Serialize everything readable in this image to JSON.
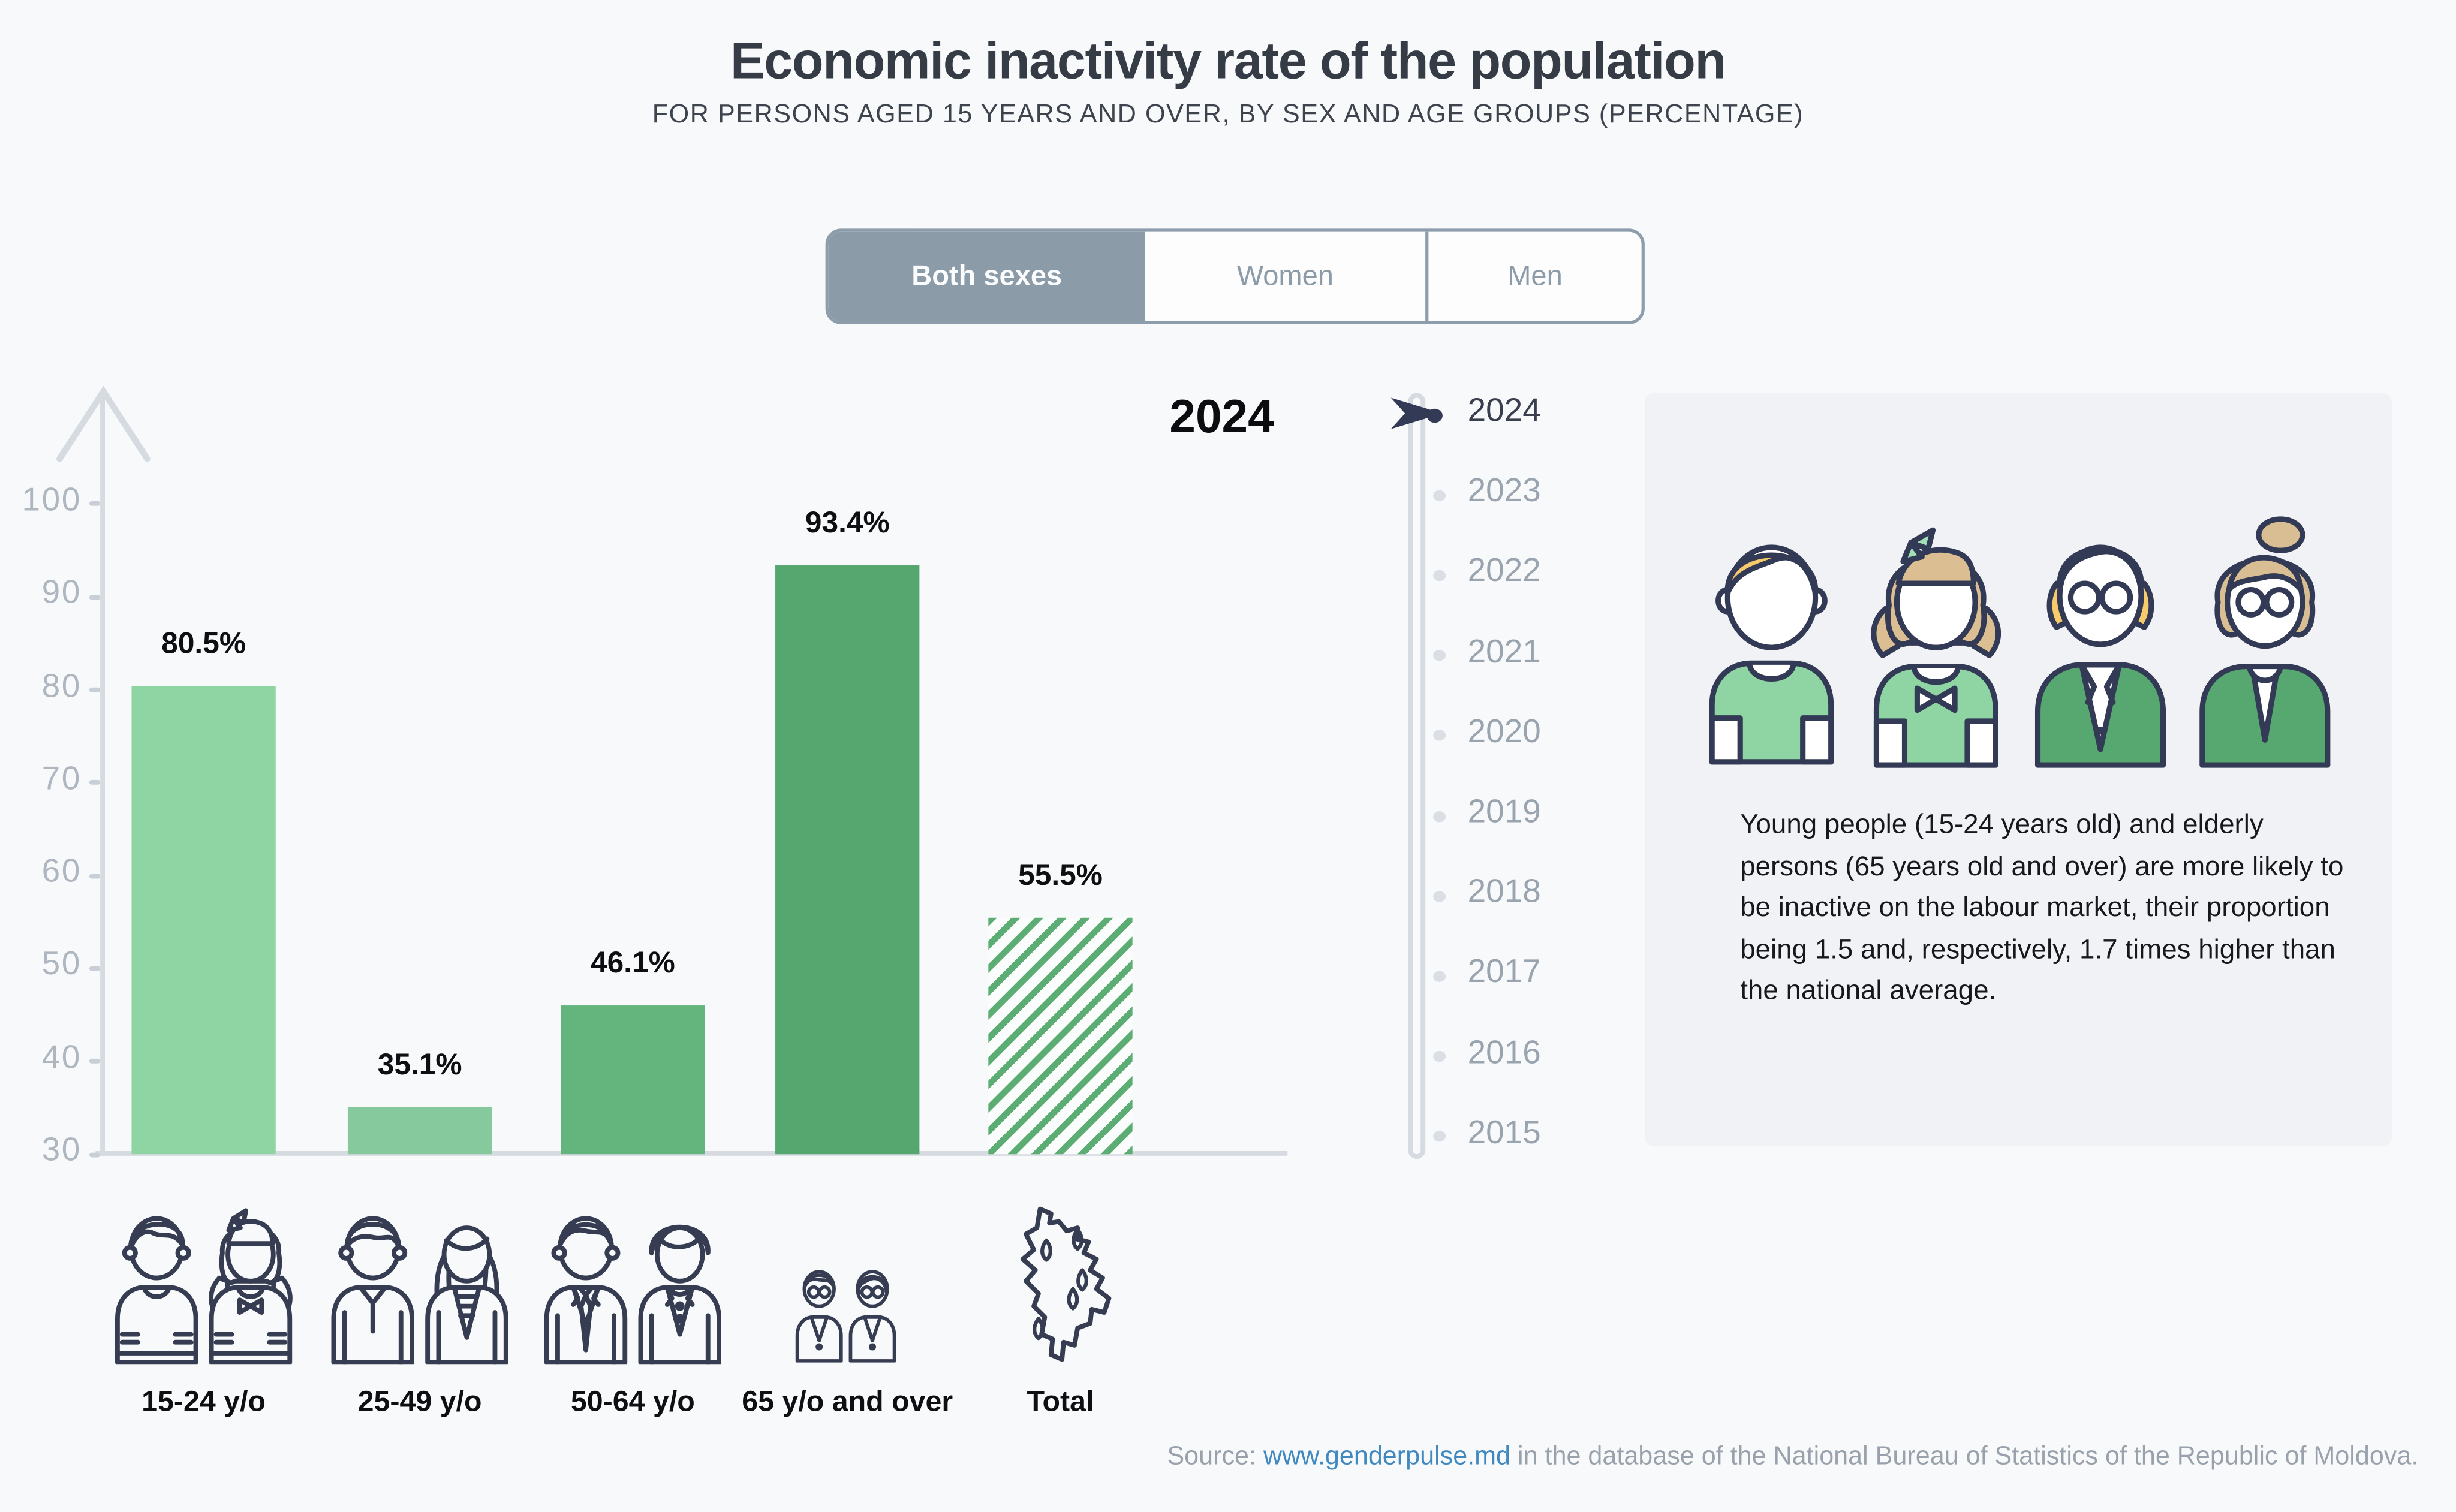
{
  "header": {
    "title": "Economic inactivity rate of the population",
    "subtitle": "FOR PERSONS AGED 15 YEARS AND OVER, BY SEX AND AGE GROUPS (PERCENTAGE)"
  },
  "tabs": [
    {
      "label": "Both sexes",
      "active": true
    },
    {
      "label": "Women",
      "active": false
    },
    {
      "label": "Men",
      "active": false
    }
  ],
  "chart_data": {
    "type": "bar",
    "title": "Economic inactivity rate of the population",
    "subtitle": "For persons aged 15 years and over, by sex and age groups (percentage)",
    "year": "2024",
    "categories": [
      "15-24 y/o",
      "25-49 y/o",
      "50-64 y/o",
      "65 y/o and over",
      "Total"
    ],
    "values": [
      80.5,
      35.1,
      46.1,
      93.4,
      55.5
    ],
    "value_labels": [
      "80.5%",
      "35.1%",
      "46.1%",
      "93.4%",
      "55.5%"
    ],
    "bar_colors": [
      "#8FD5A3",
      "#85C99C",
      "#63B57D",
      "#56A76F",
      "#5BAD73"
    ],
    "bar_styles": [
      "solid",
      "solid",
      "solid",
      "solid",
      "hatched"
    ],
    "ylim": [
      30,
      100
    ],
    "yticks": [
      30,
      40,
      50,
      60,
      70,
      80,
      90,
      100
    ],
    "grid": false,
    "legend_position": "none"
  },
  "timeline": {
    "selected": "2024",
    "years": [
      "2024",
      "2023",
      "2022",
      "2021",
      "2020",
      "2019",
      "2018",
      "2017",
      "2016",
      "2015"
    ]
  },
  "insight_card": {
    "text": "Young people (15-24 years old) and elderly persons (65 years old and over) are more likely to be inactive on the labour market, their proportion being 1.5 and, respectively, 1.7 times higher than the national average."
  },
  "source": {
    "prefix": "Source: ",
    "link_text": "www.genderpulse.md",
    "suffix": " in the database of the National Bureau of Statistics of the Republic of Moldova."
  },
  "colors": {
    "background": "#F8F9FA",
    "axis": "#D6DBE1",
    "tab_active_bg": "#8C9BA8",
    "muted_text": "#9AA4AF",
    "navy_icon": "#333A56",
    "link_blue": "#4089C0",
    "card_bg": "#F1F2F5"
  }
}
